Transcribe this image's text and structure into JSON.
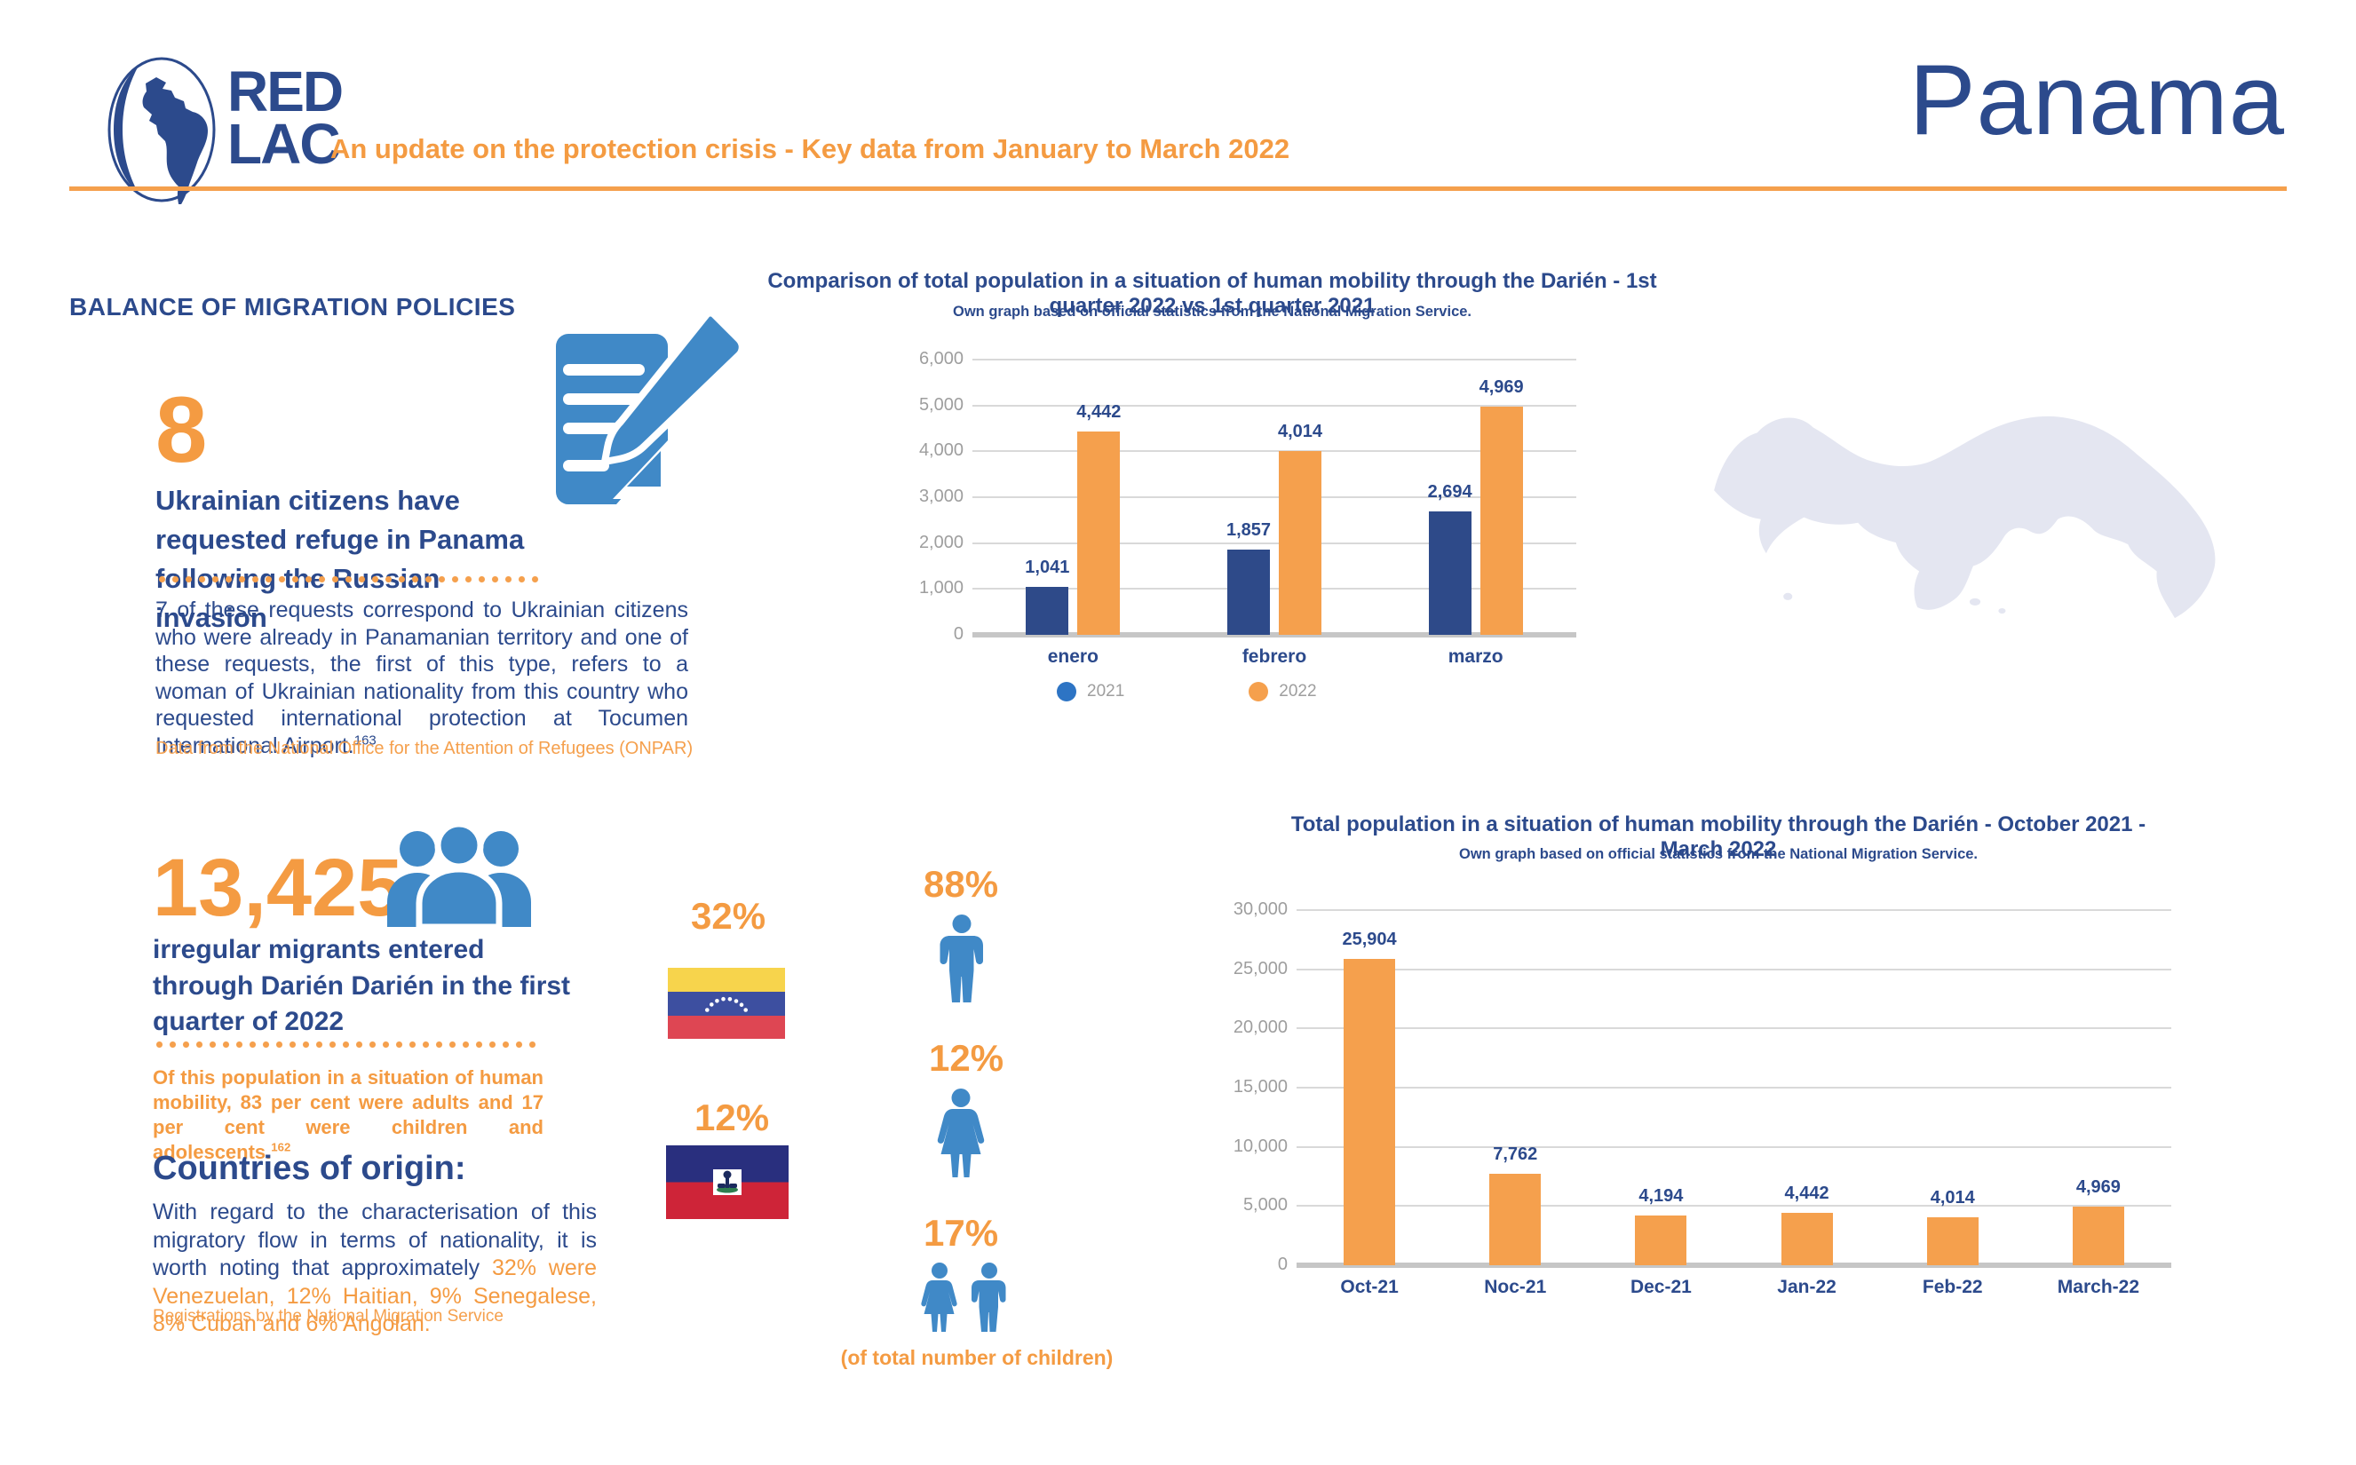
{
  "header": {
    "logo_line1": "RED",
    "logo_line2": "LAC",
    "subtitle": "An update on the protection crisis - Key data from January to March 2022",
    "country_title": "Panama"
  },
  "balance": {
    "heading": "BALANCE OF MIGRATION POLICIES",
    "stat_number": "8",
    "stat_text": "Ukrainian citizens have requested refuge in Panama following the Russian invasion",
    "paragraph": "7 of these requests correspond to Ukrainian citizens who were already in Panamanian territory and one of these requests, the first of this type, refers to a woman of Ukrainian nationality from this country who requested international protection at Tocumen International Airport.",
    "footnote": "163",
    "source": "Data from the National Office for the Attention of Refugees (ONPAR)"
  },
  "migrants": {
    "stat_number": "13,425",
    "stat_text": "irregular migrants entered through Darién Darién in the first quarter of 2022",
    "paragraph": "Of this population in a situation of human mobility, 83 per cent were adults and 17 per cent were children and adolescents.",
    "footnote": "162",
    "countries_heading": "Countries of origin:",
    "countries_lead": "With regard to the characterisation of this migratory flow in terms of nationality, it is worth noting that approximately",
    "countries_highlight": "32% were Venezuelan, 12% Haitian, 9% Senegalese, 8% Cuban and 6% Angolan.",
    "source": "Registrations by the National Migration Service"
  },
  "demographics": {
    "venezuela_pct": "32%",
    "haiti_pct": "12%",
    "male_pct": "88%",
    "female_pct": "12%",
    "children_pct": "17%",
    "children_note": "(of total number of children)"
  },
  "chart_data": [
    {
      "type": "bar",
      "title": "Comparison of total population in a situation of human mobility through the Darién - 1st quarter 2022 vs 1st quarter 2021",
      "subtitle": "Own graph based on official statistics from the National Migration Service.",
      "categories": [
        "enero",
        "febrero",
        "marzo"
      ],
      "series": [
        {
          "name": "2021",
          "color": "#2e4a89",
          "values": [
            1041,
            1857,
            2694
          ],
          "value_labels": [
            "1,041",
            "1,857",
            "2,694"
          ]
        },
        {
          "name": "2022",
          "color": "#f5a04d",
          "values": [
            4442,
            4014,
            4969
          ],
          "value_labels": [
            "4,442",
            "4,014",
            "4,969"
          ]
        }
      ],
      "ylim": [
        0,
        6000
      ],
      "ytick_step": 1000,
      "yticks": [
        "0",
        "1,000",
        "2,000",
        "3,000",
        "4,000",
        "5,000",
        "6,000"
      ],
      "legend": [
        {
          "label": "2021",
          "color": "#2d74c4"
        },
        {
          "label": "2022",
          "color": "#f5a04d"
        }
      ],
      "grid": true,
      "legend_position": "bottom"
    },
    {
      "type": "bar",
      "title": "Total population in a situation of human mobility through the Darién - October 2021 - March 2022",
      "subtitle": "Own graph based on official statistics from the National Migration Service.",
      "categories": [
        "Oct-21",
        "Noc-21",
        "Dec-21",
        "Jan-22",
        "Feb-22",
        "March-22"
      ],
      "values": [
        25904,
        7762,
        4194,
        4442,
        4014,
        4969
      ],
      "value_labels": [
        "25,904",
        "7,762",
        "4,194",
        "4,442",
        "4,014",
        "4,969"
      ],
      "bar_color": "#f5a04d",
      "ylim": [
        0,
        30000
      ],
      "ytick_step": 5000,
      "yticks": [
        "0",
        "5,000",
        "10,000",
        "15,000",
        "20,000",
        "25,000",
        "30,000"
      ],
      "grid": true
    }
  ],
  "colors": {
    "navy": "#2c4a8c",
    "orange": "#f49b42",
    "bar_navy": "#2e4a89",
    "bar_orange": "#f5a04d",
    "legend_blue": "#2d74c4",
    "icon_blue": "#4089c7",
    "map_fill": "#e4e6f1",
    "grid_gray": "#d9d9d9",
    "tick_gray": "#9e9e9e"
  }
}
